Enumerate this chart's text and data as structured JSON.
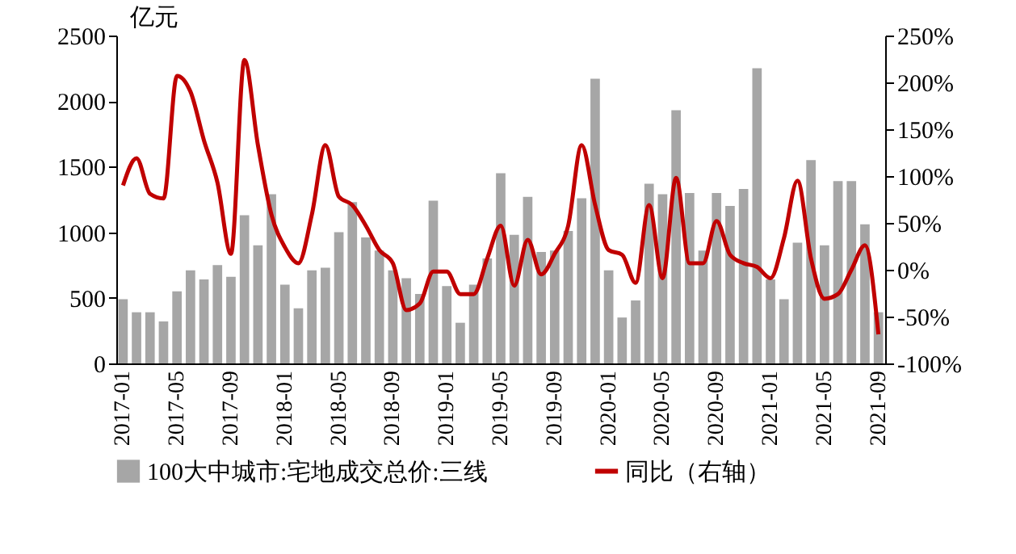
{
  "chart_data": {
    "type": "bar",
    "ylabel": "亿元",
    "categories": [
      "2017-01",
      null,
      null,
      null,
      "2017-05",
      null,
      null,
      null,
      "2017-09",
      null,
      null,
      null,
      "2018-01",
      null,
      null,
      null,
      "2018-05",
      null,
      null,
      null,
      "2018-09",
      null,
      null,
      null,
      "2019-01",
      null,
      null,
      null,
      "2019-05",
      null,
      null,
      null,
      "2019-09",
      null,
      null,
      null,
      "2020-01",
      null,
      null,
      null,
      "2020-05",
      null,
      null,
      null,
      "2020-09",
      null,
      null,
      null,
      "2021-01",
      null,
      null,
      null,
      "2021-05",
      null,
      null,
      null,
      "2021-09"
    ],
    "series": [
      {
        "name": "100大中城市:宅地成交总价:三线",
        "color": "#a6a6a6",
        "values": [
          490,
          390,
          390,
          320,
          550,
          710,
          640,
          750,
          660,
          1130,
          900,
          1290,
          600,
          420,
          710,
          730,
          1000,
          1230,
          960,
          860,
          710,
          650,
          530,
          1240,
          590,
          310,
          600,
          800,
          1450,
          980,
          1270,
          850,
          860,
          1010,
          1260,
          2170,
          710,
          350,
          480,
          1370,
          1290,
          1930,
          1300,
          860,
          1300,
          1200,
          1330,
          2250,
          640,
          490,
          920,
          1550,
          900,
          1390,
          1390,
          1060,
          390
        ]
      },
      {
        "name": "同比（右轴）",
        "type": "line",
        "axis": "y2",
        "color": "#c00000",
        "values": [
          90,
          119,
          81,
          76,
          207,
          190,
          138,
          93,
          17,
          224,
          133,
          59,
          24,
          7,
          59,
          133,
          78,
          69,
          47,
          21,
          7,
          -43,
          -36,
          -2,
          -2,
          -26,
          -26,
          12,
          47,
          -17,
          32,
          -5,
          17,
          47,
          133,
          69,
          21,
          16,
          -14,
          69,
          -9,
          98,
          7,
          7,
          52,
          16,
          7,
          3,
          -9,
          34,
          95,
          12,
          -31,
          -26,
          0,
          26,
          -69
        ]
      }
    ],
    "ylim": [
      0,
      2500
    ],
    "yticks": [
      0,
      500,
      1000,
      1500,
      2000,
      2500
    ],
    "y2lim": [
      -100,
      250
    ],
    "y2ticks": [
      {
        "value": -100,
        "label": "-100%"
      },
      {
        "value": -50,
        "label": "-50%"
      },
      {
        "value": 0,
        "label": "0%"
      },
      {
        "value": 50,
        "label": "50%"
      },
      {
        "value": 100,
        "label": "100%"
      },
      {
        "value": 150,
        "label": "150%"
      },
      {
        "value": 200,
        "label": "200%"
      },
      {
        "value": 250,
        "label": "250%"
      }
    ],
    "legend": "bottom",
    "grid": false
  }
}
